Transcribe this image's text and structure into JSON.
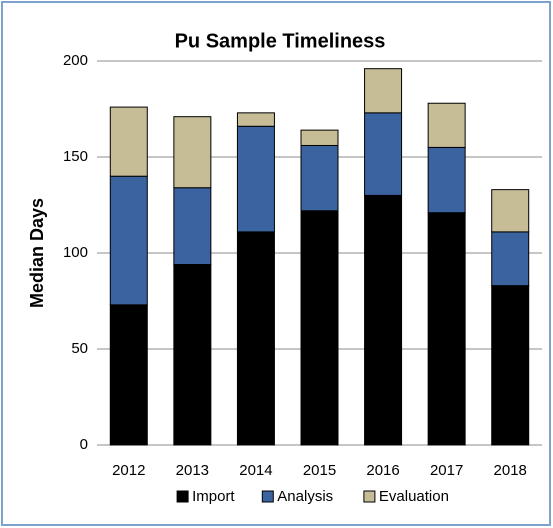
{
  "chart_data": {
    "type": "stacked_bar",
    "title": "Pu Sample Timeliness",
    "y_label": "Median Days",
    "categories": [
      "2012",
      "2013",
      "2014",
      "2015",
      "2016",
      "2017",
      "2018"
    ],
    "series": [
      {
        "name": "Import",
        "color": "#000000",
        "values": [
          73,
          94,
          111,
          122,
          130,
          121,
          83
        ]
      },
      {
        "name": "Analysis",
        "color": "#3b63a0",
        "values": [
          67,
          40,
          55,
          34,
          43,
          34,
          28
        ]
      },
      {
        "name": "Evaluation",
        "color": "#c6bd97",
        "values": [
          36,
          37,
          7,
          8,
          23,
          23,
          22
        ]
      }
    ],
    "ylim": [
      0,
      200
    ],
    "yticks": [
      0,
      50,
      100,
      150,
      200
    ],
    "grid": true,
    "legend": "bottom"
  }
}
